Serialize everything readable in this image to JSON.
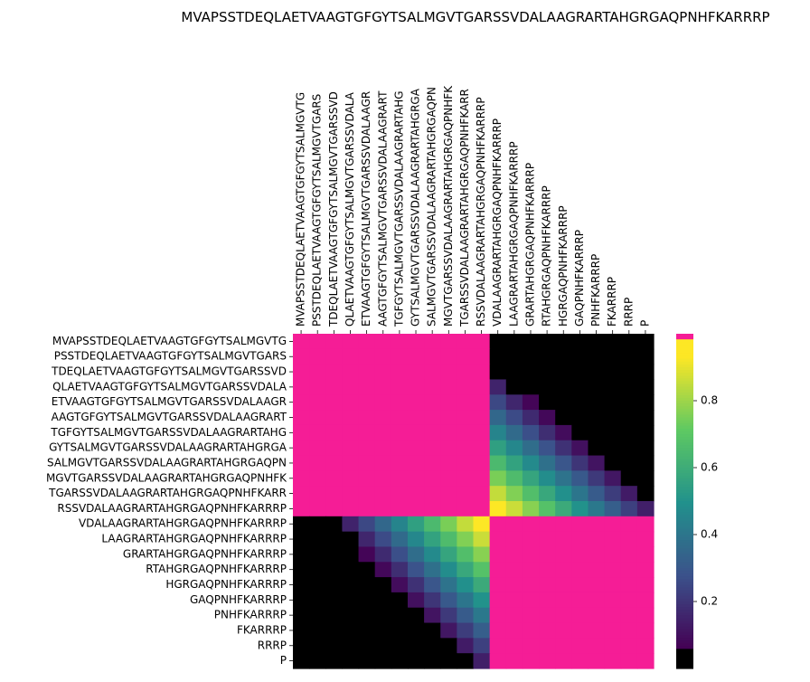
{
  "chart_data": {
    "type": "heatmap",
    "title": "MVAPSSTDEQLAETVAAGTGFGYTSALMGVTGARSSVDALAAGRARTAHGRGAQPNHFKARRRP",
    "xlabel": "",
    "ylabel": "",
    "labels": [
      "MVAPSSTDEQLAETVAAGTGFGYTSALMGVTG",
      "PSSTDEQLAETVAAGTGFGYTSALMGVTGARS",
      "TDEQLAETVAAGTGFGYTSALMGVTGARSSVD",
      "QLAETVAAGTGFGYTSALMGVTGARSSVDALA",
      "ETVAAGTGFGYTSALMGVTGARSSVDALAAGR",
      "AAGTGFGYTSALMGVTGARSSVDALAAGRART",
      "TGFGYTSALMGVTGARSSVDALAAGRARTAHG",
      "GYTSALMGVTGARSSVDALAAGRARTAHGRGA",
      "SALMGVTGARSSVDALAAGRARTAHGRGAQPN",
      "MGVTGARSSVDALAAGRARTAHGRGAQPNHFK",
      "TGARSSVDALAAGRARTAHGRGAQPNHFKARR",
      "RSSVDALAAGRARTAHGRGAQPNHFKARRRP",
      "VDALAAGRARTAHGRGAQPNHFKARRRP",
      "LAAGRARTAHGRGAQPNHFKARRRP",
      "GRARTAHGRGAQPNHFKARRRP",
      "RTAHGRGAQPNHFKARRRP",
      "HGRGAQPNHFKARRRP",
      "GAQPNHFKARRRP",
      "PNHFKARRRP",
      "FKARRRP",
      "RRRP",
      "P"
    ],
    "colorbar": {
      "ticks": [
        0.2,
        0.4,
        0.6,
        0.8
      ],
      "range": [
        0.0,
        1.0
      ],
      "colormap": "viridis with magenta for values at 1.0 and black for values near 0",
      "top_color": "#f51d96",
      "bottom_color": "#000000"
    },
    "description_values": "22x22 similarity matrix; magenta blocks (value 1.0) on the first 12x12 block and the last 10x10 block, black (near 0) in off-diagonal corners, and a yellow-green-teal-purple transition band between the blocks",
    "block_boundary": 12,
    "grid": false
  }
}
